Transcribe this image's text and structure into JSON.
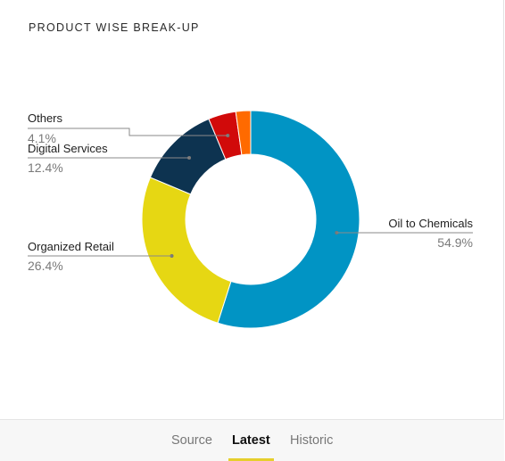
{
  "header": {
    "title": "PRODUCT WISE BREAK-UP"
  },
  "tabs": [
    {
      "label": "Source",
      "active": false
    },
    {
      "label": "Latest",
      "active": true
    },
    {
      "label": "Historic",
      "active": false
    }
  ],
  "colors": {
    "tab_underline": "#e6cf2c"
  },
  "chart_data": {
    "type": "pie",
    "variant": "donut",
    "title": "PRODUCT WISE BREAK-UP",
    "slices": [
      {
        "name": "Oil to Chemicals",
        "value": 54.9,
        "value_label": "54.9%",
        "color": "#0194c4",
        "labeled": true
      },
      {
        "name": "Organized Retail",
        "value": 26.4,
        "value_label": "26.4%",
        "color": "#e6d713",
        "labeled": true
      },
      {
        "name": "Digital Services",
        "value": 12.4,
        "value_label": "12.4%",
        "color": "#0d3350",
        "labeled": true
      },
      {
        "name": "Others",
        "value": 4.1,
        "value_label": "4.1%",
        "color": "#d10a0a",
        "labeled": true
      },
      {
        "name": "",
        "value": 2.2,
        "value_label": "",
        "color": "#ff6a00",
        "labeled": false
      }
    ],
    "legend": "none"
  }
}
